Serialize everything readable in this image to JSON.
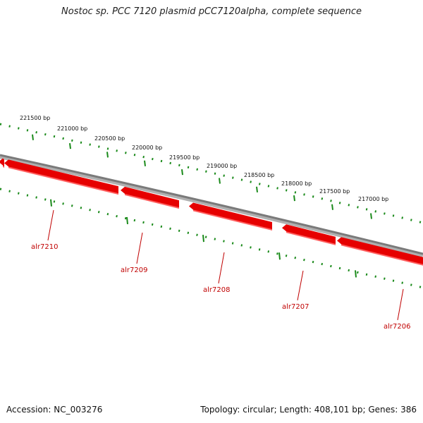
{
  "title": "Nostoc sp. PCC 7120 plasmid pCC7120alpha, complete sequence",
  "footer": {
    "accession": "Accession: NC_003276",
    "summary": "Topology: circular; Length: 408,101 bp; Genes: 386"
  },
  "bp_ticks": [
    "221500 bp",
    "221000 bp",
    "220500 bp",
    "220000 bp",
    "219500 bp",
    "219000 bp",
    "218500 bp",
    "218000 bp",
    "217500 bp",
    "217000 bp"
  ],
  "genes": [
    "alr7210",
    "alr7209",
    "alr7208",
    "alr7207",
    "alr7206"
  ],
  "colors": {
    "gene_fill": "#e60000",
    "gene_light": "#ff6060",
    "tick_green": "#1a8a1a",
    "backbone": "#808080",
    "label_red": "#c00000"
  }
}
